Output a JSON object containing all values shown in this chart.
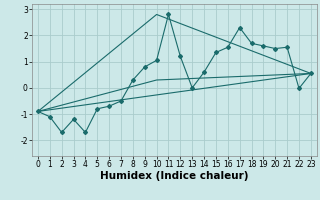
{
  "xlabel": "Humidex (Indice chaleur)",
  "ylabel": "",
  "background_color": "#cce8e8",
  "grid_color": "#aacccc",
  "line_color": "#1a6b6b",
  "xlim": [
    -0.5,
    23.5
  ],
  "ylim": [
    -2.6,
    3.2
  ],
  "yticks": [
    -2,
    -1,
    0,
    1,
    2,
    3
  ],
  "xticks": [
    0,
    1,
    2,
    3,
    4,
    5,
    6,
    7,
    8,
    9,
    10,
    11,
    12,
    13,
    14,
    15,
    16,
    17,
    18,
    19,
    20,
    21,
    22,
    23
  ],
  "series1_x": [
    0,
    1,
    2,
    3,
    4,
    5,
    6,
    7,
    8,
    9,
    10,
    11,
    12,
    13,
    14,
    15,
    16,
    17,
    18,
    19,
    20,
    21,
    22,
    23
  ],
  "series1_y": [
    -0.9,
    -1.1,
    -1.7,
    -1.2,
    -1.7,
    -0.8,
    -0.7,
    -0.5,
    0.3,
    0.8,
    1.05,
    2.8,
    1.2,
    0.0,
    0.6,
    1.35,
    1.55,
    2.3,
    1.7,
    1.6,
    1.5,
    1.55,
    -0.02,
    0.55
  ],
  "series2_x": [
    0,
    23
  ],
  "series2_y": [
    -0.9,
    0.55
  ],
  "series3_x": [
    0,
    10,
    23
  ],
  "series3_y": [
    -0.9,
    0.3,
    0.55
  ],
  "series4_x": [
    0,
    10,
    23
  ],
  "series4_y": [
    -0.9,
    2.8,
    0.55
  ],
  "tick_fontsize": 5.5,
  "label_fontsize": 7.5
}
